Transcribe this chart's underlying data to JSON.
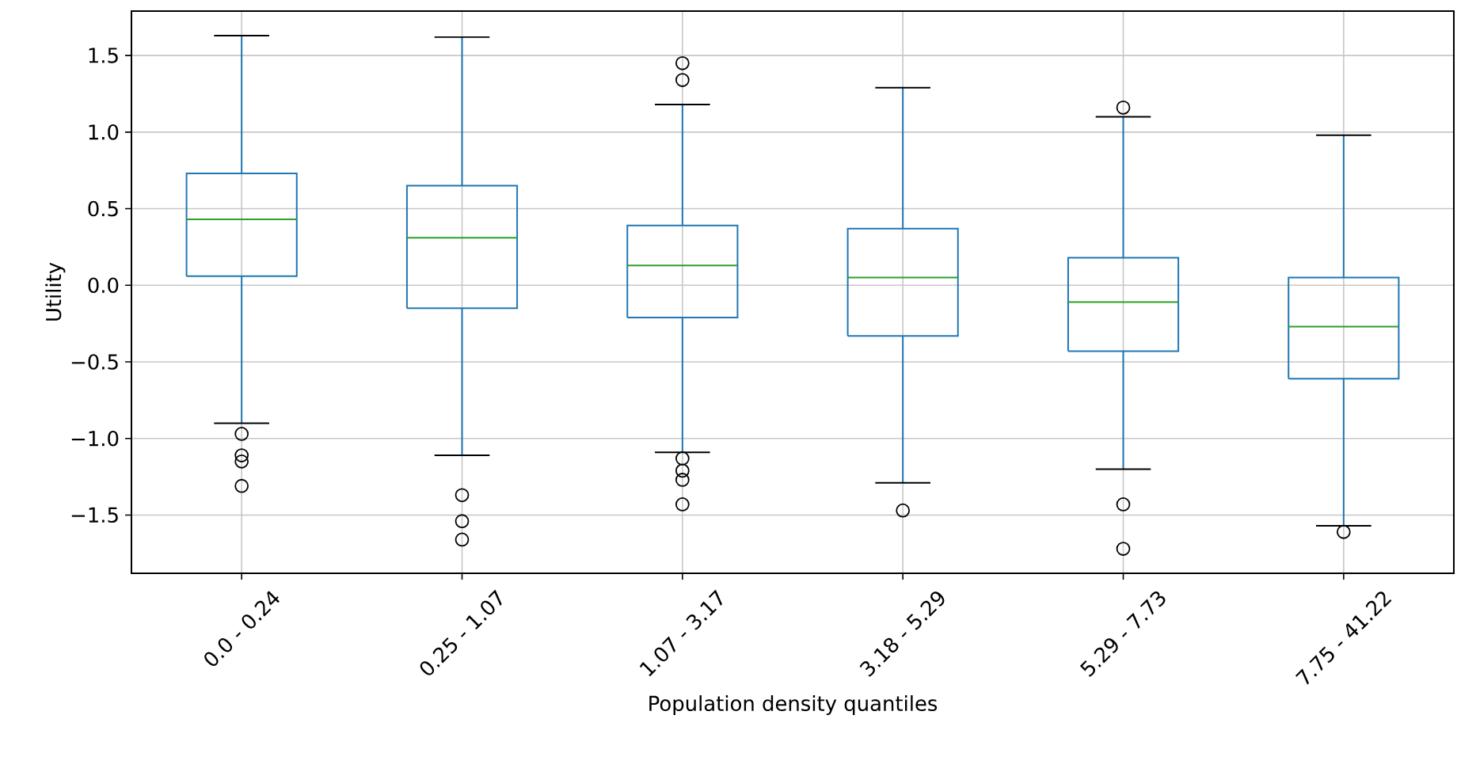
{
  "chart_data": {
    "type": "box",
    "xlabel": "Population density quantiles",
    "ylabel": "Utility",
    "categories": [
      "0.0 - 0.24",
      "0.25 - 1.07",
      "1.07 - 3.17",
      "3.18 - 5.29",
      "5.29 - 7.73",
      "7.75 - 41.22"
    ],
    "series": [
      {
        "color": "#1f77b4",
        "boxes": [
          {
            "low": -0.9,
            "q1": 0.06,
            "median": 0.43,
            "q3": 0.73,
            "high": 1.63,
            "outliers": [
              -0.97,
              -1.11,
              -1.15,
              -1.31
            ]
          },
          {
            "low": -1.11,
            "q1": -0.15,
            "median": 0.31,
            "q3": 0.65,
            "high": 1.62,
            "outliers": [
              -1.37,
              -1.54,
              -1.66
            ]
          },
          {
            "low": -1.09,
            "q1": -0.21,
            "median": 0.13,
            "q3": 0.39,
            "high": 1.18,
            "outliers": [
              1.45,
              1.34,
              -1.13,
              -1.21,
              -1.27,
              -1.43
            ]
          },
          {
            "low": -1.29,
            "q1": -0.33,
            "median": 0.05,
            "q3": 0.37,
            "high": 1.29,
            "outliers": [
              -1.47
            ]
          },
          {
            "low": -1.2,
            "q1": -0.43,
            "median": -0.11,
            "q3": 0.18,
            "high": 1.1,
            "outliers": [
              1.16,
              -1.43,
              -1.72
            ]
          },
          {
            "low": -1.57,
            "q1": -0.61,
            "median": -0.27,
            "q3": 0.05,
            "high": 0.98,
            "outliers": [
              -1.61
            ]
          }
        ]
      }
    ],
    "ylim": [
      -1.88,
      1.79
    ],
    "yticks": [
      {
        "value": -1.5,
        "label": "−1.5"
      },
      {
        "value": -1.0,
        "label": "−1.0"
      },
      {
        "value": -0.5,
        "label": "−0.5"
      },
      {
        "value": 0.0,
        "label": "0.0"
      },
      {
        "value": 0.5,
        "label": "0.5"
      },
      {
        "value": 1.0,
        "label": "1.0"
      },
      {
        "value": 1.5,
        "label": "1.5"
      }
    ],
    "grid": true
  }
}
